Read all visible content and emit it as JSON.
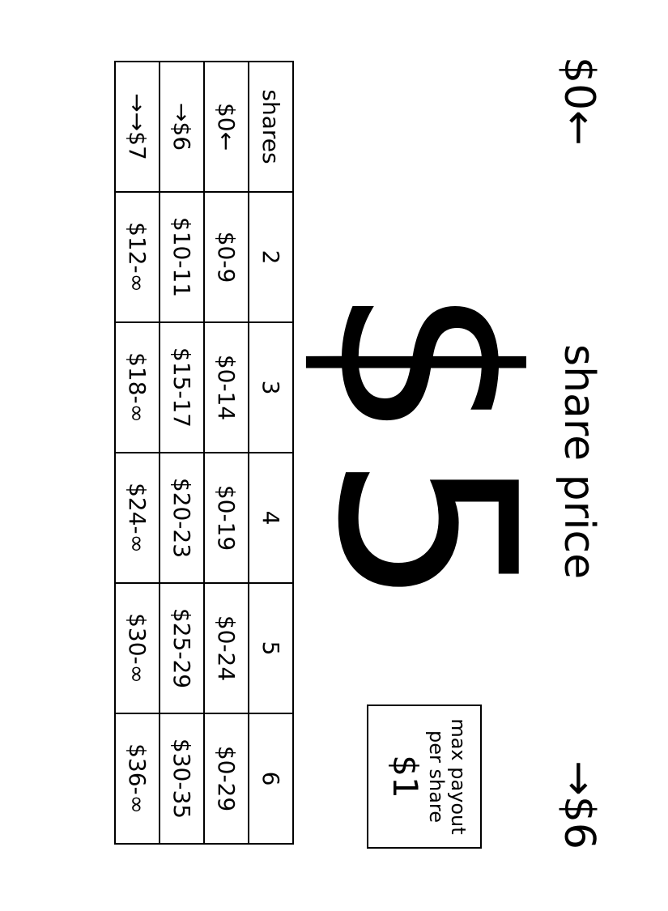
{
  "nav": {
    "left": "$0←",
    "right": "→$6"
  },
  "title": "share price",
  "price": "$5",
  "payout": {
    "label_line1": "max payout",
    "label_line2": "per share",
    "value": "$1"
  },
  "table": {
    "header": [
      "shares",
      "2",
      "3",
      "4",
      "5",
      "6"
    ],
    "rows": [
      [
        "$0←",
        "$0-9",
        "$0-14",
        "$0-19",
        "$0-24",
        "$0-29"
      ],
      [
        "→$6",
        "$10-11",
        "$15-17",
        "$20-23",
        "$25-29",
        "$30-35"
      ],
      [
        "→→$7",
        "$12-∞",
        "$18-∞",
        "$24-∞",
        "$30-∞",
        "$36-∞"
      ]
    ]
  }
}
